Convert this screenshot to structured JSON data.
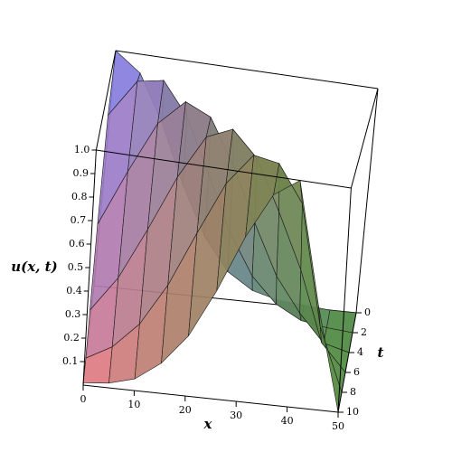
{
  "chart_data": {
    "type": "surface",
    "zlabel": "u(x, t)",
    "xlabel": "x",
    "tlabel": "t",
    "x": [
      0,
      5,
      10,
      15,
      20,
      25,
      30,
      35,
      40,
      45,
      50
    ],
    "t": [
      0,
      2,
      4,
      6,
      8,
      10
    ],
    "z": [
      [
        1.0,
        0.92,
        0.72,
        0.47,
        0.26,
        0.12,
        0.05,
        0.02,
        0.01,
        0.0,
        0.0
      ],
      [
        0.81,
        0.97,
        0.99,
        0.85,
        0.62,
        0.38,
        0.2,
        0.09,
        0.03,
        0.01,
        0.0
      ],
      [
        0.43,
        0.67,
        0.89,
        1.0,
        0.95,
        0.76,
        0.52,
        0.3,
        0.15,
        0.03,
        0.0
      ],
      [
        0.15,
        0.3,
        0.52,
        0.76,
        0.95,
        1.0,
        0.89,
        0.67,
        0.43,
        0.12,
        0.0
      ],
      [
        0.03,
        0.09,
        0.2,
        0.38,
        0.62,
        0.85,
        0.99,
        0.97,
        0.81,
        0.28,
        0.0
      ],
      [
        0.01,
        0.02,
        0.05,
        0.13,
        0.26,
        0.47,
        0.72,
        0.92,
        1.0,
        0.46,
        0.0
      ]
    ],
    "xlim": [
      0,
      50
    ],
    "tlim": [
      0,
      10
    ],
    "zlim": [
      0,
      1
    ],
    "xticks": [
      0,
      10,
      20,
      30,
      40,
      50
    ],
    "tticks": [
      0,
      2,
      4,
      6,
      8,
      10
    ],
    "zticks": [
      0.1,
      0.2,
      0.3,
      0.4,
      0.5,
      0.6,
      0.7,
      0.8,
      0.9,
      {
        "value": 1,
        "label": "1.0"
      }
    ],
    "colormap": [
      "#7c7cf2",
      "#f07a7a",
      "#4a8a3a"
    ],
    "mesh_color": "#1a1a1a"
  }
}
